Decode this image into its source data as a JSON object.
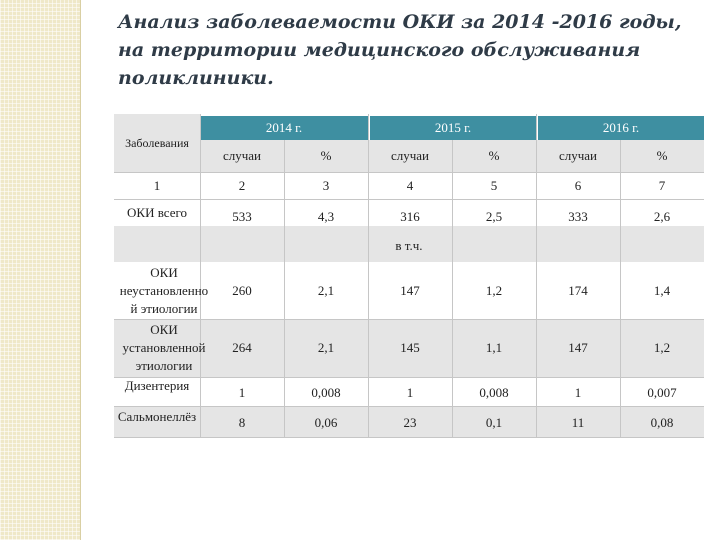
{
  "title": "Анализ заболеваемости ОКИ за  2014 -2016 годы, на территории медицинского обслуживания поликлиники.",
  "table": {
    "row_header": "Заболевания",
    "years": [
      "2014 г.",
      "2015 г.",
      "2016 г."
    ],
    "sub_headers": [
      "случаи",
      "%",
      "случаи",
      "%",
      "случаи",
      "%"
    ],
    "num_row": {
      "label": "1",
      "values": [
        "2",
        "3",
        "4",
        "5",
        "6",
        "7"
      ]
    },
    "total_row": {
      "label": "ОКИ всего",
      "values": [
        "533",
        "4,3",
        "316",
        "2,5",
        "333",
        "2,6"
      ]
    },
    "incl_label": "в т.ч.",
    "rows": [
      {
        "label_lines": [
          "ОКИ",
          "неустановленно",
          "й этиологии"
        ],
        "values": [
          "260",
          "2,1",
          "147",
          "1,2",
          "174",
          "1,4"
        ]
      },
      {
        "label_lines": [
          "ОКИ",
          "установленной",
          "этиологии"
        ],
        "values": [
          "264",
          "2,1",
          "145",
          "1,1",
          "147",
          "1,2"
        ]
      },
      {
        "label_lines": [
          "Дизентерия"
        ],
        "values": [
          "1",
          "0,008",
          "1",
          "0,008",
          "1",
          "0,007"
        ]
      },
      {
        "label_lines": [
          "Сальмонеллёз"
        ],
        "values": [
          "8",
          "0,06",
          "23",
          "0,1",
          "11",
          "0,08"
        ]
      }
    ]
  }
}
